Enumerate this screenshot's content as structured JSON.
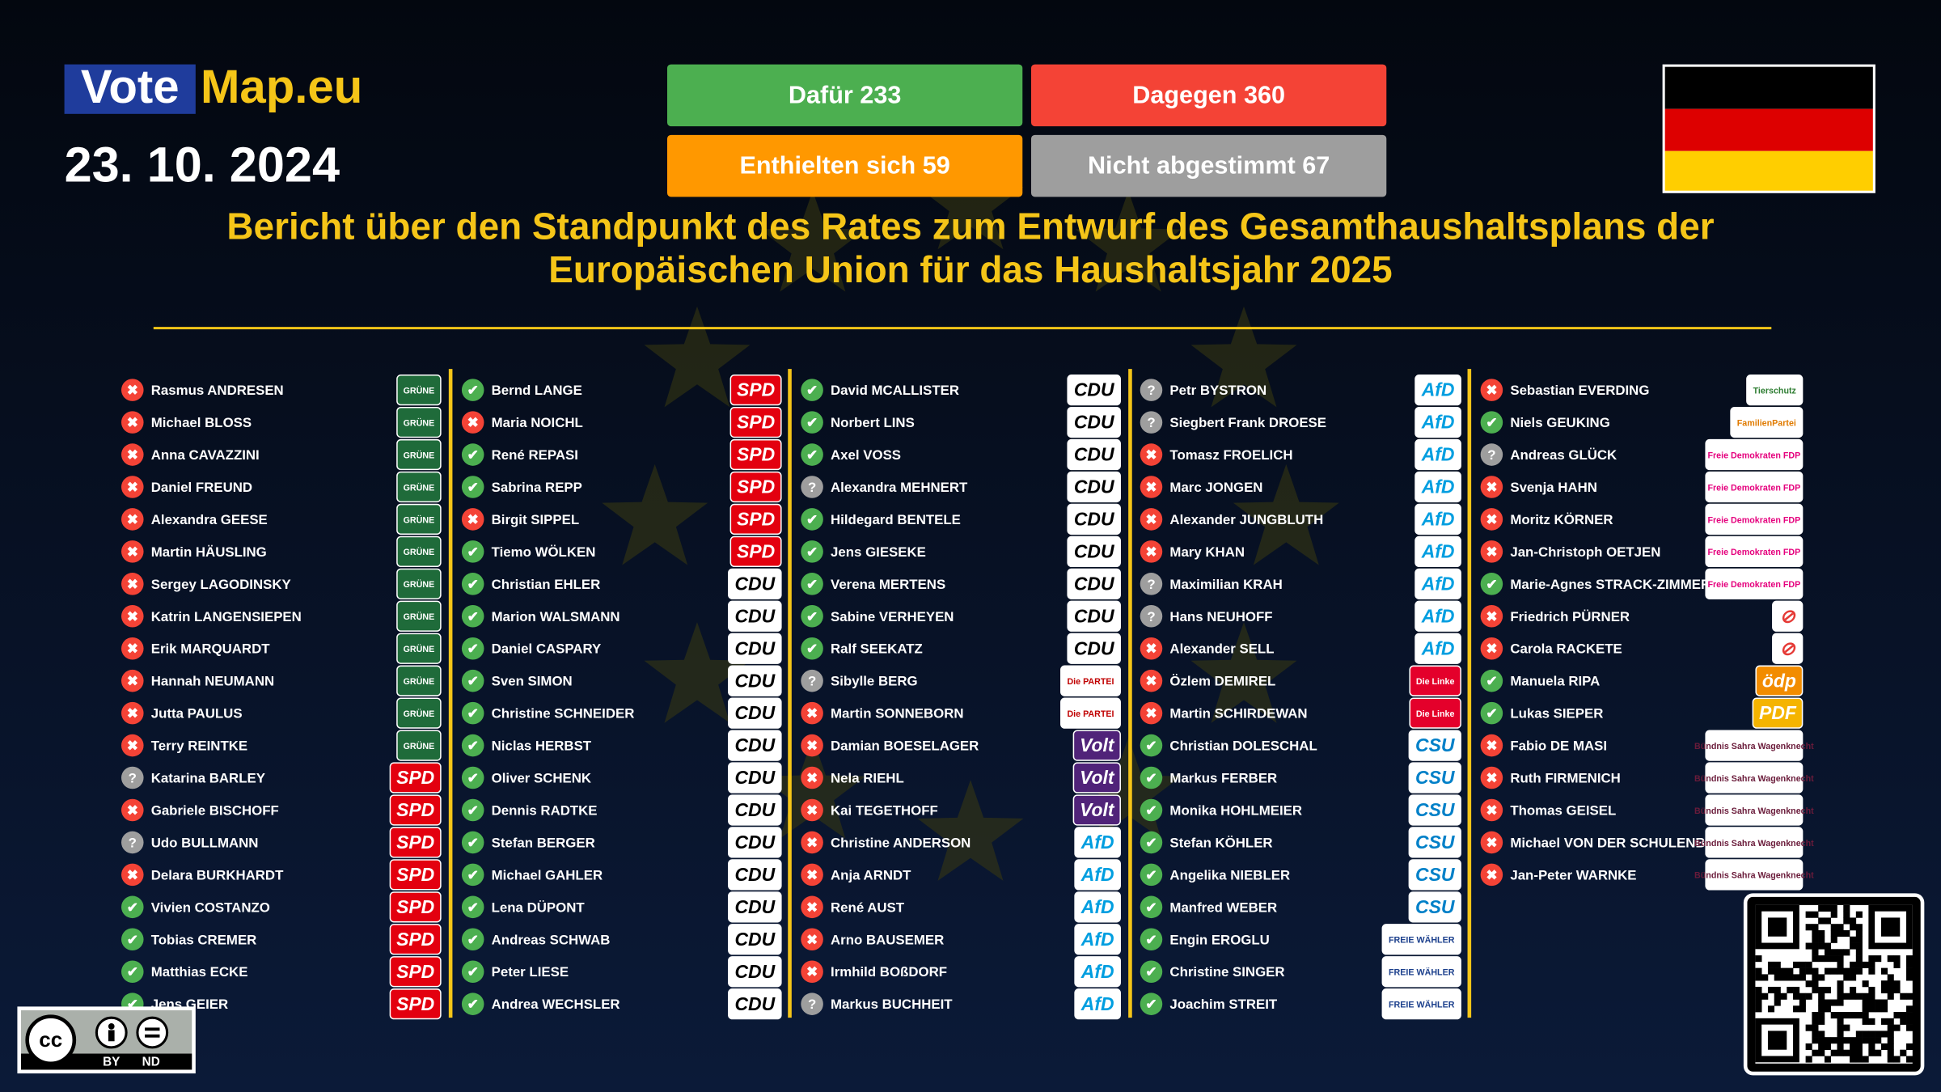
{
  "header": {
    "logo": [
      "Vote",
      "Map.eu"
    ],
    "date": "23. 10. 2024",
    "tallies": [
      {
        "label": "Dafür 233",
        "color": "#4caf50"
      },
      {
        "label": "Dagegen 360",
        "color": "#f44336"
      },
      {
        "label": "Enthielten sich 59",
        "color": "#ff9800"
      },
      {
        "label": "Nicht abgestimmt 67",
        "color": "#9e9e9e"
      }
    ],
    "title": [
      "Bericht über den Standpunkt des Rates zum Entwurf des Gesamthaushaltsplans der",
      "Europäischen Union für das Haushaltsjahr 2025"
    ]
  },
  "vote_colors": {
    "✔": "#4caf50",
    "✖": "#f44336",
    "?": "#9e9e9e"
  },
  "columns": [
    {
      "groups": [
        {
          "party": "GRÜNE",
          "bg": "#1f6b3a",
          "fg": "#ffffff",
          "members": [
            {
              "name": "Rasmus ANDRESEN",
              "vote": "✖"
            },
            {
              "name": "Michael BLOSS",
              "vote": "✖"
            },
            {
              "name": "Anna CAVAZZINI",
              "vote": "✖"
            },
            {
              "name": "Daniel FREUND",
              "vote": "✖"
            },
            {
              "name": "Alexandra GEESE",
              "vote": "✖"
            },
            {
              "name": "Martin HÄUSLING",
              "vote": "✖"
            },
            {
              "name": "Sergey LAGODINSKY",
              "vote": "✖"
            },
            {
              "name": "Katrin LANGENSIEPEN",
              "vote": "✖"
            },
            {
              "name": "Erik MARQUARDT",
              "vote": "✖"
            },
            {
              "name": "Hannah NEUMANN",
              "vote": "✖"
            },
            {
              "name": "Jutta PAULUS",
              "vote": "✖"
            },
            {
              "name": "Terry REINTKE",
              "vote": "✖"
            }
          ]
        },
        {
          "party": "SPD",
          "bg": "#e3000f",
          "fg": "#ffffff",
          "members": [
            {
              "name": "Katarina BARLEY",
              "vote": "?"
            },
            {
              "name": "Gabriele BISCHOFF",
              "vote": "✖"
            },
            {
              "name": "Udo BULLMANN",
              "vote": "?"
            },
            {
              "name": "Delara BURKHARDT",
              "vote": "✖"
            },
            {
              "name": "Vivien COSTANZO",
              "vote": "✔"
            },
            {
              "name": "Tobias CREMER",
              "vote": "✔"
            },
            {
              "name": "Matthias ECKE",
              "vote": "✔"
            },
            {
              "name": "Jens GEIER",
              "vote": "✔"
            }
          ]
        }
      ]
    },
    {
      "groups": [
        {
          "party": "SPD",
          "bg": "#e3000f",
          "fg": "#ffffff",
          "members": [
            {
              "name": "Bernd LANGE",
              "vote": "✔"
            },
            {
              "name": "Maria NOICHL",
              "vote": "✖"
            },
            {
              "name": "René REPASI",
              "vote": "✔"
            },
            {
              "name": "Sabrina REPP",
              "vote": "✔"
            },
            {
              "name": "Birgit SIPPEL",
              "vote": "✖"
            },
            {
              "name": "Tiemo WÖLKEN",
              "vote": "✔"
            }
          ]
        },
        {
          "party": "CDU",
          "bg": "#ffffff",
          "fg": "#000000",
          "members": [
            {
              "name": "Christian EHLER",
              "vote": "✔"
            },
            {
              "name": "Marion WALSMANN",
              "vote": "✔"
            },
            {
              "name": "Daniel CASPARY",
              "vote": "✔"
            },
            {
              "name": "Sven SIMON",
              "vote": "✔"
            },
            {
              "name": "Christine SCHNEIDER",
              "vote": "✔"
            },
            {
              "name": "Niclas HERBST",
              "vote": "✔"
            },
            {
              "name": "Oliver SCHENK",
              "vote": "✔"
            },
            {
              "name": "Dennis RADTKE",
              "vote": "✔"
            },
            {
              "name": "Stefan BERGER",
              "vote": "✔"
            },
            {
              "name": "Michael GAHLER",
              "vote": "✔"
            },
            {
              "name": "Lena DÜPONT",
              "vote": "✔"
            },
            {
              "name": "Andreas SCHWAB",
              "vote": "✔"
            },
            {
              "name": "Peter LIESE",
              "vote": "✔"
            },
            {
              "name": "Andrea WECHSLER",
              "vote": "✔"
            }
          ]
        }
      ]
    },
    {
      "groups": [
        {
          "party": "CDU",
          "bg": "#ffffff",
          "fg": "#000000",
          "members": [
            {
              "name": "David MCALLISTER",
              "vote": "✔"
            },
            {
              "name": "Norbert LINS",
              "vote": "✔"
            },
            {
              "name": "Axel VOSS",
              "vote": "✔"
            },
            {
              "name": "Alexandra MEHNERT",
              "vote": "?"
            },
            {
              "name": "Hildegard BENTELE",
              "vote": "✔"
            },
            {
              "name": "Jens GIESEKE",
              "vote": "✔"
            },
            {
              "name": "Verena MERTENS",
              "vote": "✔"
            },
            {
              "name": "Sabine VERHEYEN",
              "vote": "✔"
            },
            {
              "name": "Ralf SEEKATZ",
              "vote": "✔"
            }
          ]
        },
        {
          "party": "Die PARTEI",
          "bg": "#ffffff",
          "fg": "#c00000",
          "members": [
            {
              "name": "Sibylle BERG",
              "vote": "?"
            },
            {
              "name": "Martin SONNEBORN",
              "vote": "✖"
            }
          ]
        },
        {
          "party": "Volt",
          "bg": "#502379",
          "fg": "#ffffff",
          "members": [
            {
              "name": "Damian BOESELAGER",
              "vote": "✖"
            },
            {
              "name": "Nela RIEHL",
              "vote": "✖"
            },
            {
              "name": "Kai TEGETHOFF",
              "vote": "✖"
            }
          ]
        },
        {
          "party": "AfD",
          "bg": "#ffffff",
          "fg": "#009ee0",
          "members": [
            {
              "name": "Christine ANDERSON",
              "vote": "✖"
            },
            {
              "name": "Anja ARNDT",
              "vote": "✖"
            },
            {
              "name": "René AUST",
              "vote": "✖"
            },
            {
              "name": "Arno BAUSEMER",
              "vote": "✖"
            },
            {
              "name": "Irmhild BOßDORF",
              "vote": "✖"
            },
            {
              "name": "Markus BUCHHEIT",
              "vote": "?"
            }
          ]
        }
      ]
    },
    {
      "groups": [
        {
          "party": "AfD",
          "bg": "#ffffff",
          "fg": "#009ee0",
          "members": [
            {
              "name": "Petr BYSTRON",
              "vote": "?"
            },
            {
              "name": "Siegbert Frank DROESE",
              "vote": "?"
            },
            {
              "name": "Tomasz FROELICH",
              "vote": "✖"
            },
            {
              "name": "Marc JONGEN",
              "vote": "✖"
            },
            {
              "name": "Alexander JUNGBLUTH",
              "vote": "✖"
            },
            {
              "name": "Mary KHAN",
              "vote": "✖"
            },
            {
              "name": "Maximilian KRAH",
              "vote": "?"
            },
            {
              "name": "Hans NEUHOFF",
              "vote": "?"
            },
            {
              "name": "Alexander SELL",
              "vote": "✖"
            }
          ]
        },
        {
          "party": "Die Linke",
          "bg": "#e4002b",
          "fg": "#ffffff",
          "members": [
            {
              "name": "Özlem DEMIREL",
              "vote": "✖"
            },
            {
              "name": "Martin SCHIRDEWAN",
              "vote": "✖"
            }
          ]
        },
        {
          "party": "CSU",
          "bg": "#ffffff",
          "fg": "#0080c8",
          "members": [
            {
              "name": "Christian DOLESCHAL",
              "vote": "✔"
            },
            {
              "name": "Markus FERBER",
              "vote": "✔"
            },
            {
              "name": "Monika HOHLMEIER",
              "vote": "✔"
            },
            {
              "name": "Stefan KÖHLER",
              "vote": "✔"
            },
            {
              "name": "Angelika NIEBLER",
              "vote": "✔"
            },
            {
              "name": "Manfred WEBER",
              "vote": "✔"
            }
          ]
        },
        {
          "party": "FREIE WÄHLER",
          "bg": "#ffffff",
          "fg": "#1b3f8c",
          "members": [
            {
              "name": "Engin EROGLU",
              "vote": "✔"
            },
            {
              "name": "Christine SINGER",
              "vote": "✔"
            },
            {
              "name": "Joachim STREIT",
              "vote": "✔"
            }
          ]
        }
      ]
    },
    {
      "groups": [
        {
          "party": "Tierschutz",
          "bg": "#ffffff",
          "fg": "#2e7d32",
          "members": [
            {
              "name": "Sebastian EVERDING",
              "vote": "✖"
            }
          ]
        },
        {
          "party": "FamilienPartei",
          "bg": "#ffffff",
          "fg": "#e07b00",
          "members": [
            {
              "name": "Niels GEUKING",
              "vote": "✔"
            }
          ]
        },
        {
          "party": "Freie Demokraten FDP",
          "bg": "#ffffff",
          "fg": "#e5007d",
          "members": [
            {
              "name": "Andreas GLÜCK",
              "vote": "?"
            },
            {
              "name": "Svenja HAHN",
              "vote": "✖"
            },
            {
              "name": "Moritz KÖRNER",
              "vote": "✖"
            },
            {
              "name": "Jan-Christoph OETJEN",
              "vote": "✖"
            },
            {
              "name": "Marie-Agnes STRACK-ZIMMERMANN",
              "vote": "✔"
            }
          ]
        },
        {
          "party": "⊘",
          "bg": "#ffffff",
          "fg": "#e53935",
          "members": [
            {
              "name": "Friedrich PÜRNER",
              "vote": "✖"
            },
            {
              "name": "Carola RACKETE",
              "vote": "✖"
            }
          ]
        },
        {
          "party": "ödp",
          "bg": "#f28c00",
          "fg": "#ffffff",
          "members": [
            {
              "name": "Manuela RIPA",
              "vote": "✔"
            }
          ]
        },
        {
          "party": "PDF",
          "bg": "#f5b400",
          "fg": "#ffffff",
          "members": [
            {
              "name": "Lukas SIEPER",
              "vote": "✔"
            }
          ]
        },
        {
          "party": "Bündnis Sahra Wagenknecht",
          "bg": "#ffffff",
          "fg": "#6a1b3a",
          "members": [
            {
              "name": "Fabio DE MASI",
              "vote": "✖"
            },
            {
              "name": "Ruth FIRMENICH",
              "vote": "✖"
            },
            {
              "name": "Thomas GEISEL",
              "vote": "✖"
            },
            {
              "name": "Michael VON DER SCHULENBURG",
              "vote": "✖"
            },
            {
              "name": "Jan-Peter WARNKE",
              "vote": "✖"
            }
          ]
        }
      ]
    }
  ],
  "license": [
    "cc",
    "BY",
    "ND"
  ]
}
